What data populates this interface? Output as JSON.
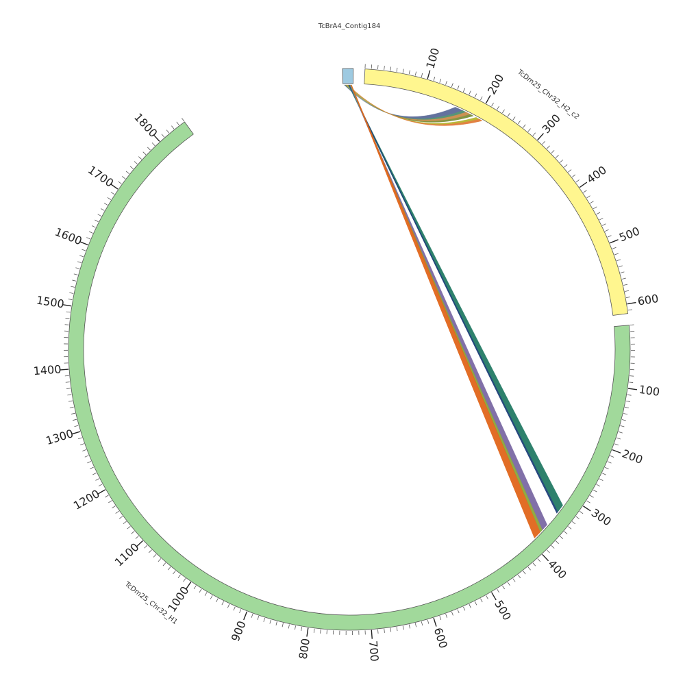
{
  "segments": [
    {
      "id": "contig184",
      "label": "TcBrA4_Contig184",
      "length": 12,
      "color": "#9ecae1",
      "ticks": false
    },
    {
      "id": "h2c2",
      "label": "TcDm25_Chr32_H2_c2",
      "length": 615,
      "color": "#fff68f",
      "ticks": true
    },
    {
      "id": "h1",
      "label": "TcDm25_Chr32_H1",
      "length": 1850,
      "color": "#a1d99b",
      "ticks": true
    }
  ],
  "tick_labels": {
    "h2c2": [
      "100",
      "200",
      "300",
      "400",
      "500",
      "600"
    ],
    "h1": [
      "100",
      "200",
      "300",
      "400",
      "500",
      "600",
      "700",
      "800",
      "900",
      "1000",
      "1100",
      "1200",
      "1300",
      "1400",
      "1500",
      "1600",
      "1700",
      "1800"
    ]
  },
  "links": [
    {
      "target": "h2c2",
      "from": 158,
      "to": 172,
      "color": "#5b6a99"
    },
    {
      "target": "h2c2",
      "from": 172,
      "to": 178,
      "color": "#4f8f6f"
    },
    {
      "target": "h2c2",
      "from": 178,
      "to": 186,
      "color": "#c98b4a"
    },
    {
      "target": "h2c2",
      "from": 186,
      "to": 192,
      "color": "#7c8f3a"
    },
    {
      "target": "h2c2",
      "from": 197,
      "to": 203,
      "color": "#b5b32e"
    },
    {
      "target": "h2c2",
      "from": 203,
      "to": 209,
      "color": "#e07b39"
    },
    {
      "target": "h1",
      "from": 318,
      "to": 332,
      "color": "#237a64"
    },
    {
      "target": "h1",
      "from": 332,
      "to": 335,
      "color": "#1f3f7a"
    },
    {
      "target": "h1",
      "from": 360,
      "to": 372,
      "color": "#7a68a3"
    },
    {
      "target": "h1",
      "from": 372,
      "to": 377,
      "color": "#8aa63a"
    },
    {
      "target": "h1",
      "from": 377,
      "to": 391,
      "color": "#e0651a"
    }
  ]
}
